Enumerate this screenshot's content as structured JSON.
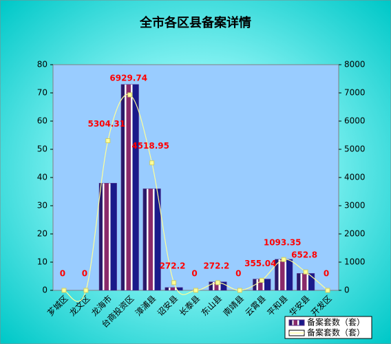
{
  "chart_data": {
    "type": "bar_line",
    "title": "全市各区县备案详情",
    "categories": [
      "芗城区",
      "龙文区",
      "龙海市",
      "台商投资区",
      "漳浦县",
      "诏安县",
      "长泰县",
      "东山县",
      "南靖县",
      "云霄县",
      "平和县",
      "华安县",
      "开发区"
    ],
    "series": [
      {
        "name": "备案套数（套）",
        "color": "#5b2c86",
        "values": [
          0,
          0,
          38,
          73,
          36,
          1,
          0,
          3,
          0,
          4,
          11,
          6,
          0
        ]
      },
      {
        "name": "备案套数（套）",
        "color": "#ffff99",
        "axis": "y2",
        "values": [
          0,
          0,
          5304.31,
          6929.74,
          4518.95,
          272.2,
          0,
          272.2,
          0,
          355.04,
          1093.35,
          652.8,
          0
        ]
      }
    ],
    "ylim": [
      0,
      80
    ],
    "yticks": [
      0,
      10,
      20,
      30,
      40,
      50,
      60,
      70,
      80
    ],
    "y2lim": [
      0,
      8000
    ],
    "y2ticks": [
      0,
      1000,
      2000,
      3000,
      4000,
      5000,
      6000,
      7000,
      8000
    ],
    "grid": false
  }
}
